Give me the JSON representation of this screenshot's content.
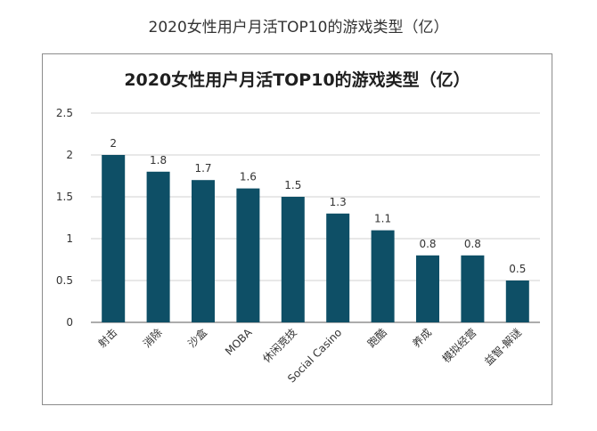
{
  "page": {
    "caption": "2020女性用户月活TOP10的游戏类型（亿）"
  },
  "colors": {
    "bar": "#0e4f66",
    "grid": "#d0d0d0",
    "axis": "#595959",
    "text": "#333333"
  },
  "chart_data": {
    "type": "bar",
    "title": "2020女性用户月活TOP10的游戏类型（亿）",
    "categories": [
      "射击",
      "消除",
      "沙盒",
      "MOBA",
      "休闲竞技",
      "Social Casino",
      "跑酷",
      "养成",
      "模拟经营",
      "益智-解谜"
    ],
    "values": [
      2,
      1.8,
      1.7,
      1.6,
      1.5,
      1.3,
      1.1,
      0.8,
      0.8,
      0.5
    ],
    "value_labels": [
      "2",
      "1.8",
      "1.7",
      "1.6",
      "1.5",
      "1.3",
      "1.1",
      "0.8",
      "0.8",
      "0.5"
    ],
    "yticks": [
      "0",
      "0.5",
      "1",
      "1.5",
      "2",
      "2.5"
    ],
    "ylim": [
      0,
      2.5
    ],
    "xlabel": "",
    "ylabel": "",
    "grid": true,
    "legend": "none"
  }
}
